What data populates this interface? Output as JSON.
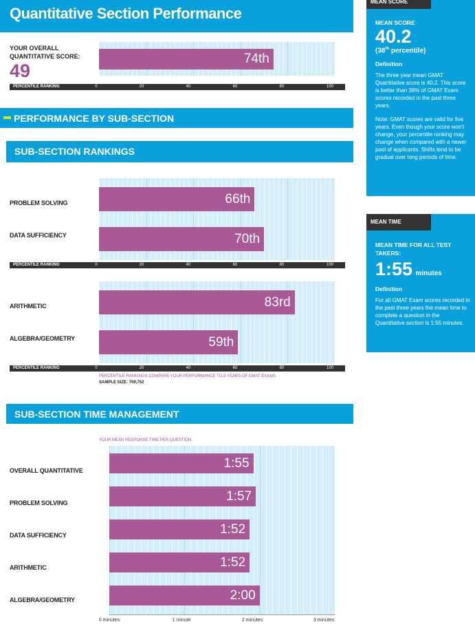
{
  "title": "Quantitative Section Performance",
  "overall": {
    "label_line1": "YOUR OVERALL",
    "label_line2": "QUANTITATIVE SCORE:",
    "score": "49",
    "bar_label": "74th",
    "percentile": 74
  },
  "percentile_axis": {
    "name": "PERCENTILE RANKING",
    "ticks": [
      "0",
      "20",
      "40",
      "60",
      "80",
      "100"
    ]
  },
  "performance_header": "PERFORMANCE BY SUB-SECTION",
  "rankings": {
    "header": "SUB-SECTION RANKINGS",
    "group1": [
      {
        "name": "PROBLEM SOLVING",
        "bar_label": "66th",
        "percentile": 66
      },
      {
        "name": "DATA SUFFICIENCY",
        "bar_label": "70th",
        "percentile": 70
      }
    ],
    "group2": [
      {
        "name": "ARITHMETIC",
        "bar_label": "83rd",
        "percentile": 83
      },
      {
        "name": "ALGEBRA/GEOMETRY",
        "bar_label": "59th",
        "percentile": 59
      }
    ],
    "note": "PERCENTILE RANKINGS COMPARE YOUR PERFORMANCE TO 3 YEARS OF GMAT EXAMS",
    "sample": "SAMPLE SIZE: 759,752"
  },
  "time": {
    "header": "SUB-SECTION TIME MANAGEMENT",
    "subtitle": "YOUR MEAN RESPONSE TIME PER QUESTION",
    "rows": [
      {
        "name": "OVERALL QUANTITATIVE",
        "bar_label": "1:55",
        "seconds": 115
      },
      {
        "name": "PROBLEM SOLVING",
        "bar_label": "1:57",
        "seconds": 117
      },
      {
        "name": "DATA SUFFICIENCY",
        "bar_label": "1:52",
        "seconds": 112
      },
      {
        "name": "ARITHMETIC",
        "bar_label": "1:52",
        "seconds": 112
      },
      {
        "name": "ALGEBRA/GEOMETRY",
        "bar_label": "2:00",
        "seconds": 120
      }
    ],
    "ticks": [
      "0 minutes",
      "1 minute",
      "2 minutes",
      "3 minutes"
    ]
  },
  "mean_score_panel": {
    "tab": "MEAN SCORE",
    "heading": "MEAN SCORE",
    "value": "40.2",
    "percentile": "(38",
    "percentile_sup": "th",
    "percentile_tail": " percentile)",
    "definition_heading": "Definition",
    "definition": "The three year mean GMAT Quantitative score is 40.2. This score is better than 38% of GMAT Exam scores recorded in the past three years.",
    "note": "Note: GMAT scores are valid for five years. Even though your score won't change, your percentile ranking may change when compared with a newer pool of applicants. Shifts tend to be gradual over long periods of time."
  },
  "mean_time_panel": {
    "tab": "MEAN TIME",
    "heading": "MEAN TIME FOR ALL TEST TAKERS:",
    "value": "1:55",
    "unit": "minutes",
    "definition_heading": "Definition",
    "definition": "For all GMAT Exam scores recorded in the past three years the mean time to complete a question in the Quantitative section is 1:55 minutes."
  },
  "colors": {
    "header_blue": "#0aa0dc",
    "bar_purple": "#a85996",
    "plot_bg": "#d4eef9",
    "accent_yellow": "#d8e020"
  }
}
